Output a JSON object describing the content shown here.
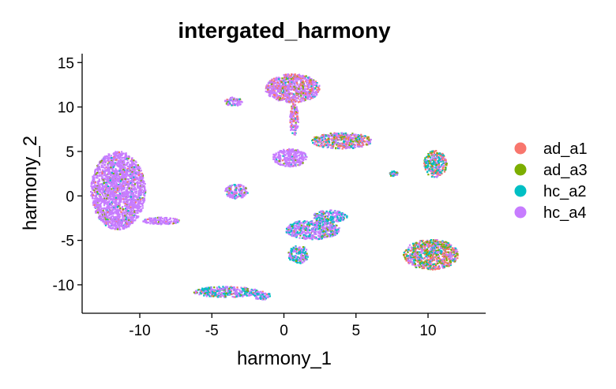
{
  "chart_data": {
    "type": "scatter",
    "title": "intergated_harmony",
    "xlabel": "harmony_1",
    "ylabel": "harmony_2",
    "xlim": [
      -14,
      14
    ],
    "ylim": [
      -13.2,
      16
    ],
    "xticks": [
      -10,
      -5,
      0,
      5,
      10
    ],
    "xtick_labels": [
      "-10",
      "-5",
      "0",
      "5",
      "10"
    ],
    "yticks": [
      -10,
      -5,
      0,
      5,
      10,
      15
    ],
    "ytick_labels": [
      "-10",
      "-5",
      "0",
      "5",
      "10",
      "15"
    ],
    "grid": false,
    "legend_position": "right",
    "series": [
      {
        "name": "ad_a1",
        "color": "#F8766D"
      },
      {
        "name": "ad_a3",
        "color": "#7CAE00"
      },
      {
        "name": "hc_a2",
        "color": "#00BFC4"
      },
      {
        "name": "hc_a4",
        "color": "#C77CFF"
      }
    ],
    "clusters": [
      {
        "label": "left crescent",
        "cx": -11.5,
        "cy": 0.6,
        "rx": 1.9,
        "ry": 4.4,
        "mix": [
          0.03,
          0.06,
          0.04,
          0.87
        ]
      },
      {
        "label": "top",
        "cx": 0.6,
        "cy": 12.1,
        "rx": 1.9,
        "ry": 1.6,
        "mix": [
          0.22,
          0.08,
          0.06,
          0.64
        ]
      },
      {
        "label": "upper stem",
        "cx": 0.7,
        "cy": 8.6,
        "rx": 0.3,
        "ry": 1.8,
        "mix": [
          0.2,
          0.05,
          0.05,
          0.7
        ]
      },
      {
        "label": "center",
        "cx": 0.4,
        "cy": 4.3,
        "rx": 1.2,
        "ry": 1.0,
        "mix": [
          0.05,
          0.05,
          0.05,
          0.85
        ]
      },
      {
        "label": "upper right arm",
        "cx": 4.0,
        "cy": 6.2,
        "rx": 2.1,
        "ry": 0.9,
        "mix": [
          0.22,
          0.16,
          0.18,
          0.44
        ]
      },
      {
        "label": "small center-left",
        "cx": -3.3,
        "cy": 0.5,
        "rx": 0.8,
        "ry": 0.8,
        "mix": [
          0.05,
          0.05,
          0.1,
          0.8
        ]
      },
      {
        "label": "bottom center",
        "cx": 2.0,
        "cy": -3.8,
        "rx": 1.9,
        "ry": 1.1,
        "mix": [
          0.03,
          0.05,
          0.27,
          0.65
        ]
      },
      {
        "label": "bottom center arm",
        "cx": 3.2,
        "cy": -2.3,
        "rx": 1.2,
        "ry": 0.7,
        "mix": [
          0.03,
          0.08,
          0.45,
          0.44
        ]
      },
      {
        "label": "bottom center tail",
        "cx": 1.0,
        "cy": -6.6,
        "rx": 0.7,
        "ry": 1.0,
        "mix": [
          0.03,
          0.05,
          0.42,
          0.5
        ]
      },
      {
        "label": "right upper",
        "cx": 10.5,
        "cy": 3.6,
        "rx": 0.8,
        "ry": 1.5,
        "mix": [
          0.25,
          0.1,
          0.4,
          0.25
        ]
      },
      {
        "label": "right lower",
        "cx": 10.2,
        "cy": -6.6,
        "rx": 1.9,
        "ry": 1.7,
        "mix": [
          0.32,
          0.2,
          0.18,
          0.3
        ]
      },
      {
        "label": "bottom left band",
        "cx": -4.0,
        "cy": -10.8,
        "rx": 2.3,
        "ry": 0.6,
        "mix": [
          0.05,
          0.1,
          0.35,
          0.5
        ]
      },
      {
        "label": "bottom left tail",
        "cx": -1.5,
        "cy": -11.2,
        "rx": 0.6,
        "ry": 0.5,
        "mix": [
          0.05,
          0.05,
          0.35,
          0.55
        ]
      },
      {
        "label": "left streak",
        "cx": -8.5,
        "cy": -2.8,
        "rx": 1.3,
        "ry": 0.4,
        "mix": [
          0.05,
          0.05,
          0.05,
          0.85
        ]
      },
      {
        "label": "top-left dots",
        "cx": -3.5,
        "cy": 10.6,
        "rx": 0.6,
        "ry": 0.5,
        "mix": [
          0.1,
          0.05,
          0.1,
          0.75
        ]
      },
      {
        "label": "right-mid dots",
        "cx": 7.6,
        "cy": 2.5,
        "rx": 0.3,
        "ry": 0.3,
        "mix": [
          0.1,
          0.05,
          0.45,
          0.4
        ]
      }
    ]
  }
}
